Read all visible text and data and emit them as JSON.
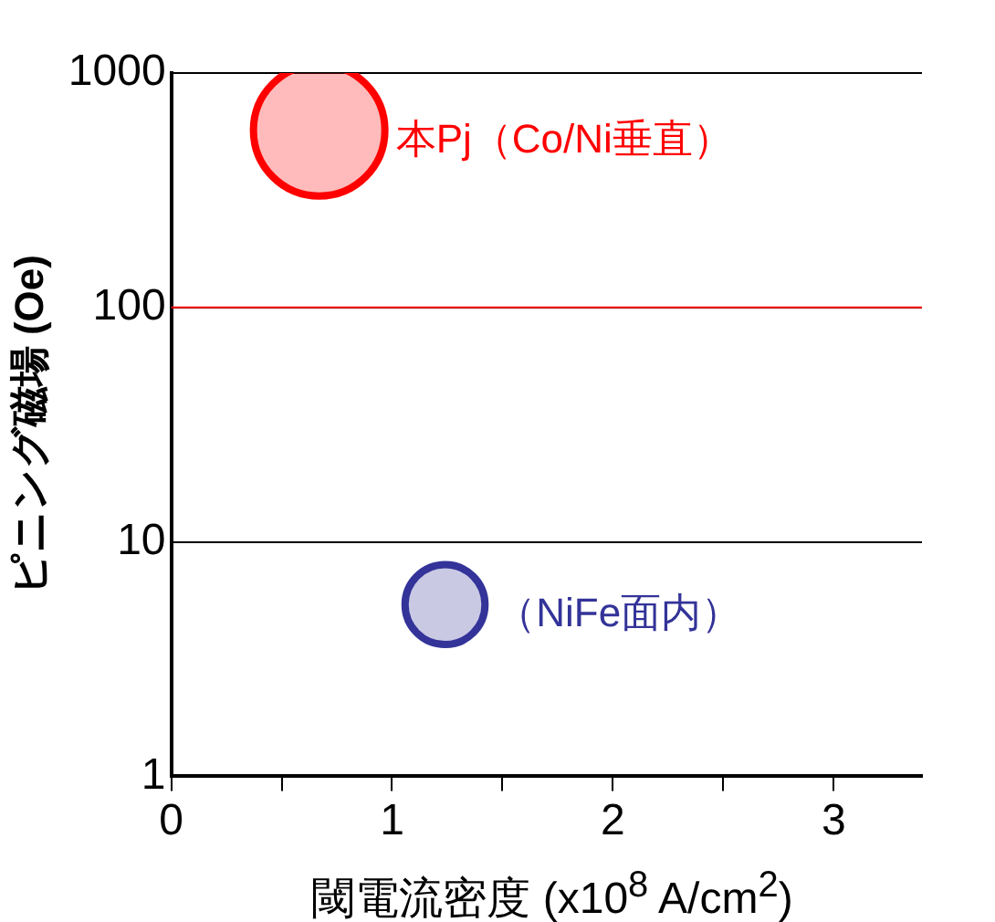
{
  "chart_data": {
    "type": "bubble",
    "xlabel": "閾電流密度 (x10$^{8}$ A/cm$^{2}$)",
    "ylabel": "ピニング磁場 (Oe)",
    "series": [
      {
        "name": "本Pj（Co/Ni垂直）",
        "color": "#ff0000",
        "x": [
          0.67
        ],
        "values": [
          570
        ],
        "sizes": [
          1
        ]
      },
      {
        "name": "（NiFe面内）",
        "color": "#333399",
        "x": [
          1.24
        ],
        "values": [
          5.4
        ],
        "sizes": [
          0.37
        ]
      }
    ],
    "xlim": [
      0,
      3.4
    ],
    "xticks": [
      0,
      {
        "value": 0.5,
        "label": null
      },
      1,
      {
        "value": 1.5,
        "label": null
      },
      2,
      {
        "value": 2.5,
        "label": null
      },
      3
    ],
    "ylim": [
      1,
      1000
    ],
    "yticks": [
      1,
      10,
      100,
      1000
    ],
    "log": "y",
    "grid": "y",
    "ref_lines": [
      {
        "axis": "y",
        "value": 100,
        "color": "#ff0000"
      }
    ]
  }
}
